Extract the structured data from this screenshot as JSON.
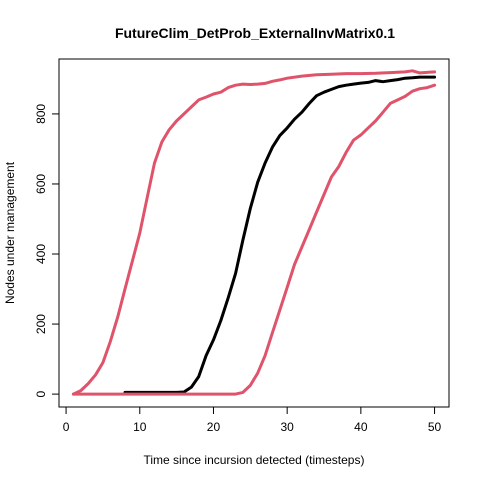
{
  "chart_data": {
    "type": "line",
    "title": "FutureClim_DetProb_ExternalInvMatrix0.1",
    "xlabel": "Time since incursion detected (timesteps)",
    "ylabel": "Nodes under management",
    "xlim": [
      -0.96,
      51.96
    ],
    "ylim": [
      -36.8,
      956.8
    ],
    "xticks": [
      0,
      10,
      20,
      30,
      40,
      50
    ],
    "yticks": [
      0,
      200,
      400,
      600,
      800
    ],
    "grid": false,
    "legend": "none",
    "series": [
      {
        "color": "#DF536B",
        "x": [
          1,
          2,
          3,
          4,
          5,
          6,
          7,
          8,
          9,
          10,
          11,
          12,
          13,
          14,
          15,
          16,
          17,
          18,
          19,
          20,
          21,
          22,
          23,
          24,
          25,
          26,
          27,
          28,
          29,
          30,
          32,
          34,
          36,
          38,
          40,
          42,
          44,
          46,
          47,
          48,
          50
        ],
        "y": [
          0,
          10,
          30,
          55,
          90,
          150,
          220,
          300,
          380,
          460,
          560,
          660,
          720,
          755,
          780,
          800,
          820,
          840,
          848,
          857,
          862,
          875,
          882,
          885,
          884,
          885,
          887,
          893,
          897,
          902,
          908,
          912,
          913,
          915,
          915,
          916,
          918,
          920,
          923,
          917,
          920
        ]
      },
      {
        "color": "#000000",
        "x": [
          8,
          10,
          12,
          14,
          15,
          16,
          17,
          18,
          19,
          20,
          21,
          22,
          23,
          24,
          25,
          26,
          27,
          28,
          29,
          30,
          31,
          32,
          33,
          34,
          35,
          36,
          37,
          38,
          39,
          40,
          41,
          42,
          43,
          44,
          45,
          46,
          47,
          48,
          49,
          50
        ],
        "y": [
          5,
          5,
          5,
          5,
          5,
          6,
          20,
          50,
          110,
          155,
          210,
          275,
          345,
          440,
          530,
          605,
          660,
          705,
          738,
          760,
          785,
          805,
          830,
          852,
          862,
          870,
          878,
          882,
          885,
          888,
          890,
          895,
          892,
          895,
          898,
          902,
          903,
          905,
          905,
          905
        ]
      },
      {
        "color": "#DF536B",
        "x": [
          1,
          5,
          10,
          15,
          20,
          22,
          23,
          24,
          25,
          26,
          27,
          28,
          29,
          30,
          31,
          32,
          33,
          34,
          35,
          36,
          37,
          38,
          39,
          40,
          41,
          42,
          43,
          44,
          45,
          46,
          47,
          48,
          49,
          50
        ],
        "y": [
          0,
          0,
          0,
          0,
          0,
          0,
          0,
          5,
          25,
          60,
          110,
          175,
          240,
          305,
          370,
          420,
          470,
          520,
          570,
          620,
          650,
          690,
          725,
          740,
          760,
          780,
          805,
          830,
          840,
          850,
          865,
          872,
          875,
          882
        ]
      }
    ]
  }
}
